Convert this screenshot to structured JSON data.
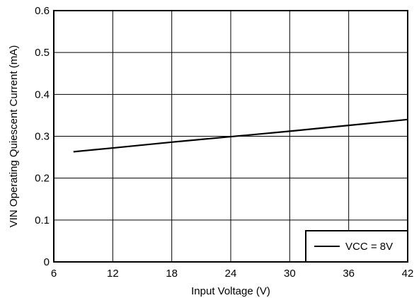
{
  "chart_data": {
    "type": "line",
    "title": "",
    "xlabel": "Input Voltage (V)",
    "ylabel": "VIN Operating Quiescent Current (mA)",
    "xlim": [
      6,
      42
    ],
    "ylim": [
      0,
      0.6
    ],
    "x_ticks": [
      "6",
      "12",
      "18",
      "24",
      "30",
      "36",
      "42"
    ],
    "y_ticks": [
      "0",
      "0.1",
      "0.2",
      "0.3",
      "0.4",
      "0.5",
      "0.6"
    ],
    "grid": true,
    "legend_position": "bottom-right",
    "series": [
      {
        "name": "VCC = 8V",
        "color": "#000000",
        "x": [
          8,
          12,
          18,
          24,
          30,
          36,
          42
        ],
        "y": [
          0.263,
          0.272,
          0.286,
          0.299,
          0.312,
          0.326,
          0.34
        ]
      }
    ]
  }
}
